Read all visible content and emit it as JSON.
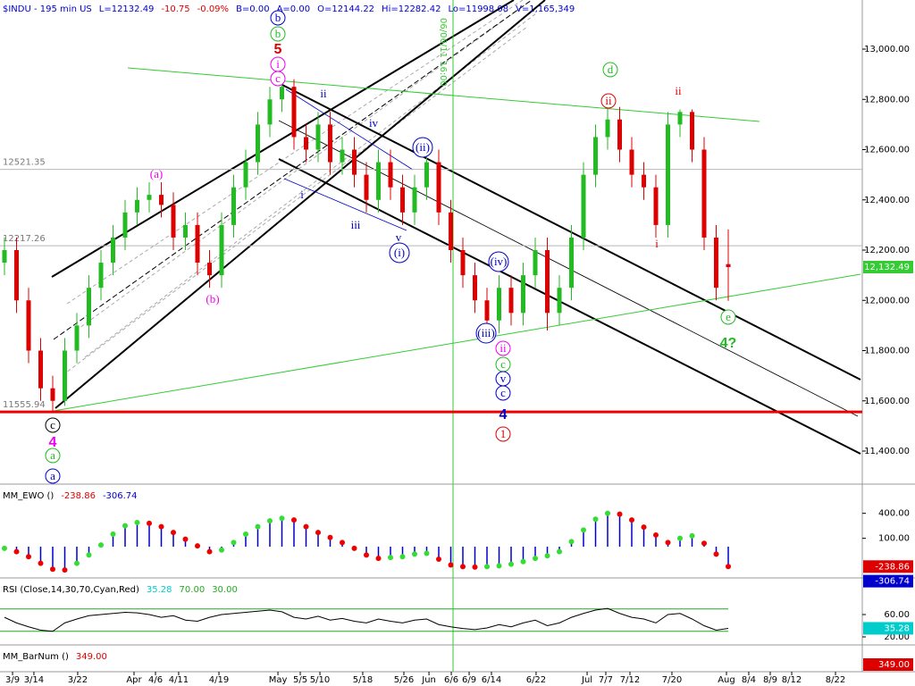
{
  "chart_data": [
    {
      "type": "candlestick",
      "title": "$INDU - 195 min  US",
      "title_color": "#0000cc",
      "header_items": [
        {
          "text": "L=12132.49",
          "color": "#0000cc"
        },
        {
          "text": "-10.75",
          "color": "#dd0000"
        },
        {
          "text": "-0.09%",
          "color": "#dd0000"
        },
        {
          "text": "B=0.00",
          "color": "#0000cc"
        },
        {
          "text": "A=0.00",
          "color": "#0000cc"
        },
        {
          "text": "O=12144.22",
          "color": "#0000cc"
        },
        {
          "text": "Hi=12282.42",
          "color": "#0000cc"
        },
        {
          "text": "Lo=11998.08",
          "color": "#0000cc"
        },
        {
          "text": "V=1,165,349",
          "color": "#0000cc"
        }
      ],
      "x": [
        0,
        1,
        2,
        3,
        4,
        5,
        6,
        7,
        8,
        9,
        10,
        11,
        12,
        13,
        14,
        15,
        16,
        17,
        18,
        19,
        20,
        21,
        22,
        23,
        24,
        25,
        26,
        27,
        28,
        29,
        30,
        31,
        32,
        33,
        34,
        35,
        36,
        37,
        38,
        39,
        40,
        41,
        42,
        43,
        44,
        45,
        46,
        47,
        48,
        49,
        50,
        51,
        52,
        53,
        54,
        55,
        56,
        57,
        58,
        59,
        60
      ],
      "open": [
        12150,
        12200,
        12000,
        11800,
        11650,
        11600,
        11800,
        11900,
        12050,
        12150,
        12250,
        12350,
        12400,
        12420,
        12380,
        12250,
        12300,
        12150,
        12100,
        12300,
        12450,
        12550,
        12700,
        12800,
        12850,
        12650,
        12600,
        12700,
        12550,
        12600,
        12500,
        12400,
        12550,
        12450,
        12350,
        12450,
        12550,
        12350,
        12200,
        12100,
        12000,
        11920,
        12050,
        11950,
        12100,
        12200,
        11950,
        12050,
        12250,
        12500,
        12650,
        12720,
        12600,
        12500,
        12450,
        12300,
        12700,
        12750,
        12600,
        12250,
        12144.22
      ],
      "high": [
        12250,
        12250,
        12050,
        11850,
        11700,
        11850,
        11950,
        12100,
        12200,
        12300,
        12400,
        12450,
        12470,
        12470,
        12430,
        12350,
        12350,
        12200,
        12350,
        12500,
        12600,
        12750,
        12850,
        12880,
        12880,
        12700,
        12750,
        12750,
        12650,
        12650,
        12550,
        12600,
        12600,
        12500,
        12500,
        12600,
        12600,
        12400,
        12250,
        12150,
        12050,
        12100,
        12100,
        12150,
        12250,
        12250,
        12100,
        12300,
        12550,
        12700,
        12770,
        12770,
        12650,
        12550,
        12500,
        12750,
        12760,
        12760,
        12650,
        12300,
        12282.42
      ],
      "low": [
        12100,
        11950,
        11750,
        11600,
        11556,
        11580,
        11750,
        11850,
        12000,
        12100,
        12200,
        12300,
        12350,
        12330,
        12200,
        12200,
        12100,
        12050,
        12050,
        12250,
        12400,
        12500,
        12650,
        12750,
        12600,
        12550,
        12550,
        12500,
        12500,
        12450,
        12350,
        12350,
        12400,
        12300,
        12300,
        12400,
        12300,
        12150,
        12050,
        11950,
        11870,
        11870,
        11900,
        11900,
        12050,
        11880,
        11900,
        12000,
        12200,
        12450,
        12600,
        12550,
        12450,
        12400,
        12250,
        12250,
        12650,
        12550,
        12200,
        12000,
        11998.08
      ],
      "close": [
        12200,
        12000,
        11800,
        11650,
        11600,
        11800,
        11900,
        12050,
        12150,
        12250,
        12350,
        12400,
        12420,
        12380,
        12250,
        12300,
        12150,
        12100,
        12300,
        12450,
        12550,
        12700,
        12800,
        12850,
        12650,
        12600,
        12700,
        12550,
        12600,
        12500,
        12400,
        12550,
        12450,
        12350,
        12450,
        12550,
        12350,
        12200,
        12100,
        12000,
        11920,
        12050,
        11950,
        12100,
        12200,
        11950,
        12050,
        12250,
        12500,
        12650,
        12720,
        12600,
        12500,
        12450,
        12300,
        12700,
        12750,
        12600,
        12250,
        12050,
        12132.49
      ],
      "up_color": "#22bb22",
      "down_color": "#dd0000",
      "xlim": [
        -0.37,
        71.11
      ],
      "xticks": [
        {
          "value": 0.67,
          "label": "3/9"
        },
        {
          "value": 2.44,
          "label": "3/14"
        },
        {
          "value": 6.07,
          "label": "3/22"
        },
        {
          "value": 10.74,
          "label": "Apr"
        },
        {
          "value": 12.52,
          "label": "4/6"
        },
        {
          "value": 14.44,
          "label": "4/11"
        },
        {
          "value": 17.78,
          "label": "4/19"
        },
        {
          "value": 22.67,
          "label": "May"
        },
        {
          "value": 24.52,
          "label": "5/5"
        },
        {
          "value": 26.15,
          "label": "5/10"
        },
        {
          "value": 29.7,
          "label": "5/18"
        },
        {
          "value": 33.11,
          "label": "5/26"
        },
        {
          "value": 35.19,
          "label": "Jun"
        },
        {
          "value": 37.04,
          "label": "6/6"
        },
        {
          "value": 38.52,
          "label": "6/9"
        },
        {
          "value": 40.37,
          "label": "6/14"
        },
        {
          "value": 44.07,
          "label": "6/22"
        },
        {
          "value": 48.3,
          "label": "Jul"
        },
        {
          "value": 49.85,
          "label": "7/7"
        },
        {
          "value": 51.85,
          "label": "7/12"
        },
        {
          "value": 55.33,
          "label": "7/20"
        },
        {
          "value": 59.85,
          "label": "Aug"
        },
        {
          "value": 61.7,
          "label": "8/4"
        },
        {
          "value": 63.48,
          "label": "8/9"
        },
        {
          "value": 65.26,
          "label": "8/12"
        },
        {
          "value": 68.89,
          "label": "8/22"
        }
      ],
      "ylim": [
        11275.6,
        13195.6
      ],
      "yticks": [
        {
          "value": 13000,
          "label": "13,000.00"
        },
        {
          "value": 12800,
          "label": "12,800.00"
        },
        {
          "value": 12600,
          "label": "12,600.00"
        },
        {
          "value": 12400,
          "label": "12,400.00"
        },
        {
          "value": 12200,
          "label": "12,200.00"
        },
        {
          "value": 12000,
          "label": "12,000.00"
        },
        {
          "value": 11800,
          "label": "11,800.00"
        },
        {
          "value": 11600,
          "label": "11,600.00"
        },
        {
          "value": 11400,
          "label": "11,400.00"
        }
      ],
      "levels": [
        {
          "value": 12521.35,
          "color": "#b8b8b8"
        },
        {
          "value": 12217.26,
          "color": "#b8b8b8"
        },
        {
          "value": 11555.94,
          "color": "#ee0000"
        }
      ],
      "last_tag": {
        "value": 12132.49,
        "label": "12,132.49",
        "color": "#33cc33"
      },
      "marker_label": "06/06/11 16:00",
      "annotations": [
        {
          "text": "b",
          "color": "#0000cc",
          "circled": true
        },
        {
          "text": "b",
          "color": "#22bb22",
          "circled": true
        },
        {
          "text": "5",
          "color": "#dd0000",
          "circled": false
        },
        {
          "text": "i",
          "color": "#ee00ee",
          "circled": true
        },
        {
          "text": "c",
          "color": "#ee00ee",
          "circled": true
        },
        {
          "text": "(a)",
          "color": "#ee00ee",
          "circled": false
        },
        {
          "text": "(b)",
          "color": "#ee00ee",
          "circled": false
        },
        {
          "text": "ii",
          "color": "#0000cc",
          "circled": false
        },
        {
          "text": "iv",
          "color": "#0000cc",
          "circled": false
        },
        {
          "text": "i",
          "color": "#0000cc",
          "circled": false
        },
        {
          "text": "iii",
          "color": "#0000cc",
          "circled": false
        },
        {
          "text": "v",
          "color": "#0000cc",
          "circled": false
        },
        {
          "text": "(i)",
          "color": "#0000cc",
          "circled": true
        },
        {
          "text": "(ii)",
          "color": "#0000cc",
          "circled": true
        },
        {
          "text": "(iv)",
          "color": "#0000cc",
          "circled": true
        },
        {
          "text": "(iii)",
          "color": "#0000cc",
          "circled": true
        },
        {
          "text": "ii",
          "color": "#ee00ee",
          "circled": true
        },
        {
          "text": "c",
          "color": "#22bb22",
          "circled": true
        },
        {
          "text": "v",
          "color": "#0000cc",
          "circled": true
        },
        {
          "text": "c",
          "color": "#0000cc",
          "circled": true
        },
        {
          "text": "4",
          "color": "#0000cc",
          "circled": false
        },
        {
          "text": "1",
          "color": "#dd0000",
          "circled": true
        },
        {
          "text": "d",
          "color": "#22bb22",
          "circled": true
        },
        {
          "text": "ii",
          "color": "#dd0000",
          "circled": true
        },
        {
          "text": "ii",
          "color": "#dd0000",
          "circled": false
        },
        {
          "text": "i",
          "color": "#dd0000",
          "circled": false
        },
        {
          "text": "e",
          "color": "#22bb22",
          "circled": true
        },
        {
          "text": "4?",
          "color": "#22bb22",
          "circled": false
        },
        {
          "text": "c",
          "color": "#000000",
          "circled": true
        },
        {
          "text": "4",
          "color": "#ee00ee",
          "circled": false
        },
        {
          "text": "a",
          "color": "#22bb22",
          "circled": true
        },
        {
          "text": "a",
          "color": "#0000cc",
          "circled": true
        }
      ]
    },
    {
      "type": "oscillator",
      "title": "MM_EWO ()",
      "values": [
        -20,
        -60,
        -120,
        -200,
        -270,
        -280,
        -200,
        -100,
        20,
        150,
        250,
        290,
        280,
        240,
        170,
        90,
        10,
        -60,
        -40,
        50,
        150,
        240,
        310,
        340,
        320,
        240,
        170,
        110,
        50,
        -20,
        -100,
        -140,
        -130,
        -120,
        -90,
        -80,
        -150,
        -220,
        -240,
        -245,
        -240,
        -230,
        -210,
        -180,
        -140,
        -110,
        -60,
        60,
        200,
        330,
        400,
        390,
        320,
        235,
        140,
        50,
        100,
        130,
        40,
        -90,
        -238.86
      ],
      "bar_color": "#0000cc",
      "up_color": "#33dd33",
      "down_color": "#ee0000",
      "ylim": [
        -353.6,
        718
      ],
      "yticks": [
        {
          "value": 400,
          "label": "400.00"
        },
        {
          "value": 100,
          "label": "100.00"
        }
      ],
      "readouts": [
        {
          "value": -238.86,
          "label": "-238.86",
          "color": "#dd0000"
        },
        {
          "value": -306.74,
          "label": "-306.74",
          "color": "#0000cc"
        }
      ]
    },
    {
      "type": "line",
      "title": "RSI (Close,14,30,70,Cyan,Red)",
      "values": [
        55,
        45,
        38,
        32,
        30,
        45,
        52,
        58,
        60,
        62,
        64,
        63,
        60,
        55,
        58,
        50,
        48,
        55,
        60,
        62,
        64,
        66,
        68,
        65,
        55,
        52,
        57,
        50,
        53,
        48,
        45,
        52,
        48,
        45,
        50,
        52,
        42,
        38,
        35,
        33,
        36,
        42,
        38,
        45,
        50,
        40,
        45,
        55,
        62,
        68,
        71,
        62,
        55,
        52,
        45,
        60,
        62,
        52,
        40,
        32,
        35.28
      ],
      "color": "#000000",
      "ylim": [
        8.8,
        120.8
      ],
      "yticks": [
        {
          "value": 60,
          "label": "60.00"
        },
        {
          "value": 20,
          "label": "20.00"
        }
      ],
      "readouts": [
        {
          "value": 35.28,
          "label": "35.28",
          "color": "#00cccc"
        },
        {
          "value": 70,
          "label": "70.00",
          "color": "#22aa22"
        },
        {
          "value": 30,
          "label": "30.00",
          "color": "#22aa22"
        }
      ]
    },
    {
      "type": "counter",
      "title": "MM_BarNum ()",
      "readouts": [
        {
          "value": 349,
          "label": "349.00",
          "color": "#dd0000"
        }
      ]
    }
  ]
}
